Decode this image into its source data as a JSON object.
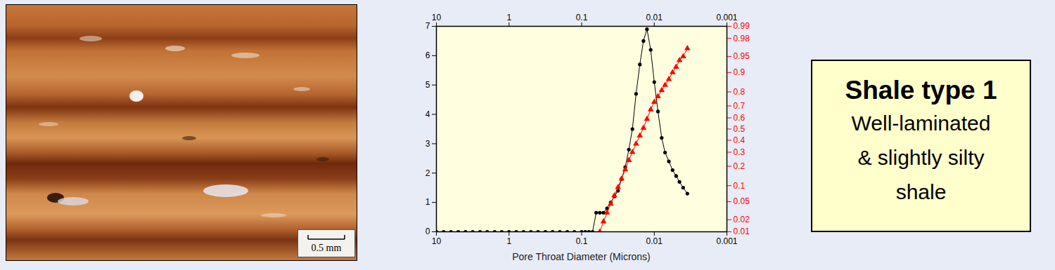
{
  "photo": {
    "scale_bar": "0.5 mm"
  },
  "text_box": {
    "title": "Shale type 1",
    "lines": [
      "Well-laminated",
      "& slightly silty",
      "shale"
    ]
  },
  "chart_data": {
    "type": "line",
    "xlabel": "Pore Throat Diameter (Microns)",
    "log": "x",
    "grid": false,
    "x": [
      10,
      7.94,
      6.31,
      5.01,
      3.98,
      3.16,
      2.51,
      2,
      1.58,
      1.26,
      1,
      0.794,
      0.631,
      0.501,
      0.398,
      0.316,
      0.251,
      0.2,
      0.158,
      0.126,
      0.1,
      0.0891,
      0.0794,
      0.0708,
      0.0631,
      0.0562,
      0.0501,
      0.0447,
      0.0398,
      0.0355,
      0.0316,
      0.0282,
      0.0251,
      0.0224,
      0.02,
      0.0178,
      0.0158,
      0.0141,
      0.0126,
      0.0112,
      0.01,
      0.0089,
      0.0079,
      0.0071,
      0.0063,
      0.0056,
      0.005,
      0.0045,
      0.004,
      0.0035
    ],
    "xlim": [
      10,
      0.001
    ],
    "xticks": [
      10,
      1,
      0.1,
      0.01,
      0.001
    ],
    "ylim": [
      0,
      7
    ],
    "yticks": [
      0,
      1,
      2,
      3,
      4,
      5,
      6,
      7
    ],
    "y2lim": [
      0.01,
      0.99
    ],
    "y2ticks": [
      0.01,
      0.02,
      0.05,
      0.1,
      0.2,
      0.3,
      0.4,
      0.5,
      0.6,
      0.7,
      0.8,
      0.9,
      0.95,
      0.98,
      0.99
    ],
    "series": [
      {
        "color": "#000000",
        "marker": "circle",
        "line_style": "solid",
        "values": [
          0,
          0,
          0,
          0,
          0,
          0,
          0,
          0,
          0,
          0,
          0,
          0,
          0,
          0,
          0,
          0,
          0,
          0,
          0,
          0,
          0,
          0,
          0,
          0,
          0.65,
          0.65,
          0.65,
          0.8,
          1.0,
          1.2,
          1.4,
          1.8,
          2.2,
          2.8,
          3.5,
          4.7,
          5.7,
          6.5,
          6.9,
          6.2,
          5.1,
          4.1,
          3.2,
          2.7,
          2.4,
          2.1,
          1.9,
          1.7,
          1.5,
          1.3
        ]
      },
      {
        "color": "#ff0000",
        "marker": "triangle",
        "line_style": "solid",
        "axis": "y2",
        "values": [
          null,
          null,
          null,
          null,
          null,
          null,
          null,
          null,
          null,
          null,
          null,
          null,
          null,
          null,
          null,
          null,
          null,
          null,
          null,
          null,
          null,
          null,
          null,
          null,
          null,
          0.01,
          0.018,
          0.029,
          0.045,
          0.066,
          0.094,
          0.13,
          0.18,
          0.24,
          0.3,
          0.37,
          0.44,
          0.51,
          0.59,
          0.67,
          0.73,
          0.77,
          0.81,
          0.84,
          0.87,
          0.9,
          0.92,
          0.94,
          0.95,
          0.966
        ]
      }
    ]
  }
}
